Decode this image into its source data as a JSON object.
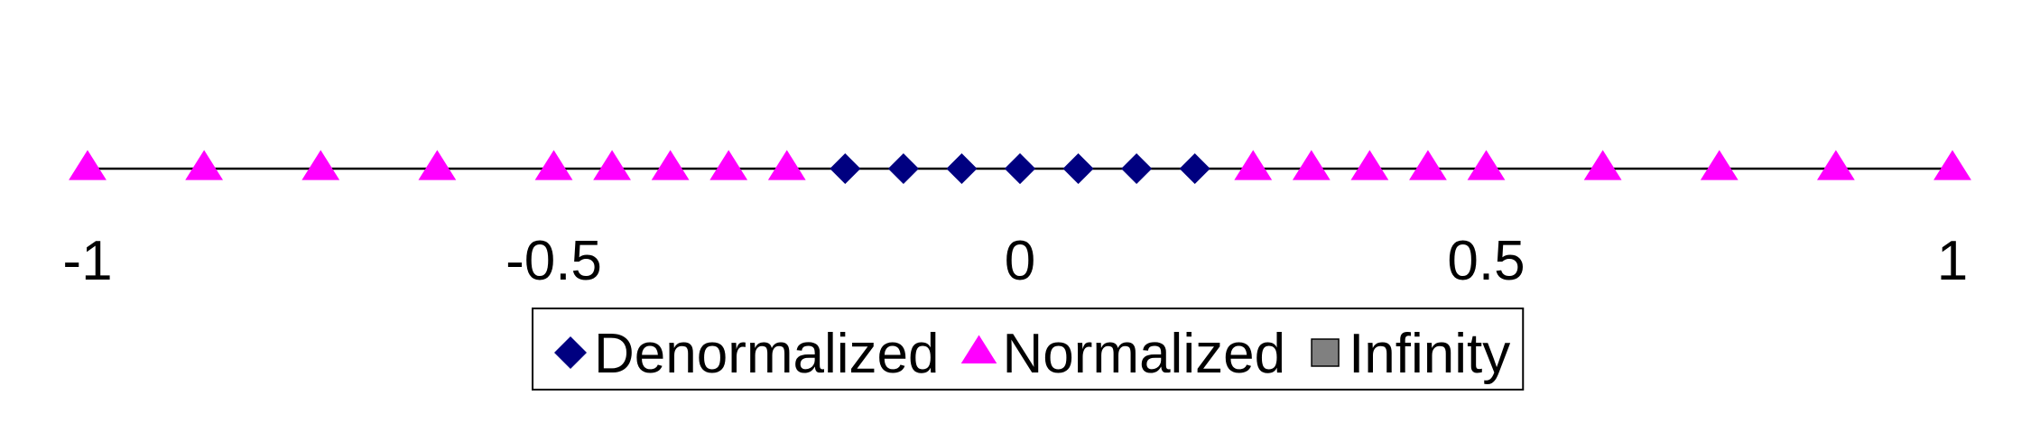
{
  "chart_data": {
    "type": "scatter",
    "title": "",
    "xlabel": "",
    "ylabel": "",
    "xlim": [
      -1,
      1
    ],
    "grid": false,
    "legend_placement": "bottom-center",
    "x_ticks": [
      {
        "value": -1,
        "label": "-1"
      },
      {
        "value": -0.5,
        "label": "-0.5"
      },
      {
        "value": 0,
        "label": "0"
      },
      {
        "value": 0.5,
        "label": "0.5"
      },
      {
        "value": 1,
        "label": "1"
      }
    ],
    "series": [
      {
        "name": "Denormalized",
        "marker": "diamond",
        "color": "#000080",
        "x": [
          -0.1875,
          -0.125,
          -0.0625,
          0,
          0,
          0.0625,
          0.125,
          0.1875
        ]
      },
      {
        "name": "Normalized",
        "marker": "triangle",
        "color": "#FF00FF",
        "x": [
          -1,
          -0.875,
          -0.75,
          -0.625,
          -0.5,
          -0.4375,
          -0.375,
          -0.3125,
          -0.25,
          0.25,
          0.3125,
          0.375,
          0.4375,
          0.5,
          0.625,
          0.75,
          0.875,
          1
        ]
      },
      {
        "name": "Infinity",
        "marker": "square",
        "color": "#808080",
        "x": []
      }
    ]
  }
}
